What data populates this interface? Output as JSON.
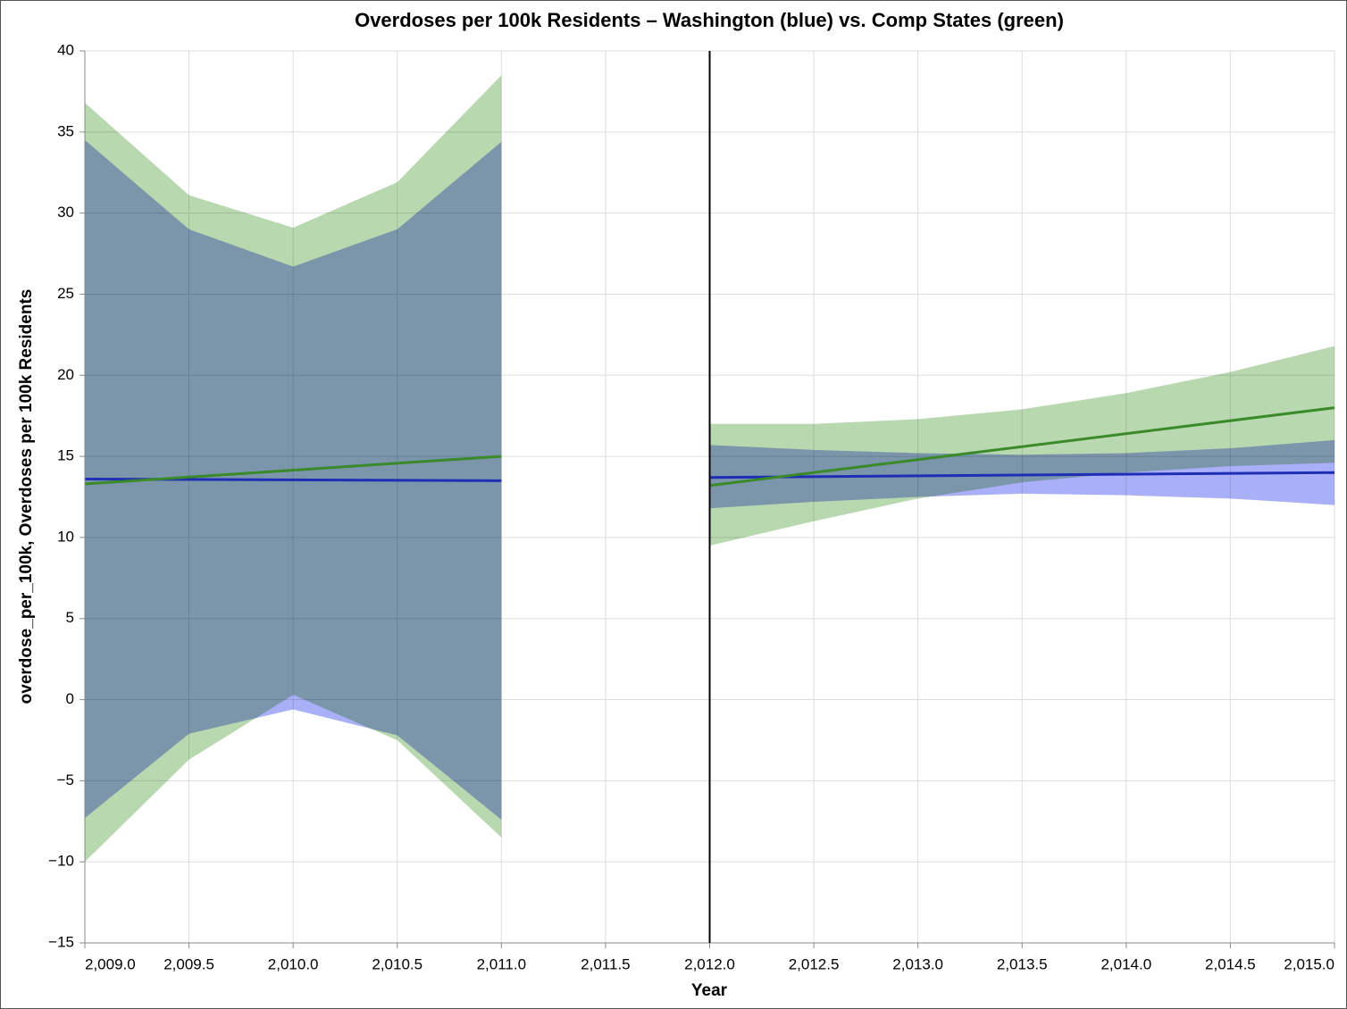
{
  "chart_data": {
    "type": "line",
    "title": "Overdoses per 100k Residents – Washington (blue) vs. Comp States (green)",
    "x_label": "Year",
    "y_label": "overdose_per_100k, Overdoses per 100k Residents",
    "xlim": [
      2009,
      2015
    ],
    "ylim": [
      -15,
      40
    ],
    "xticks": [
      {
        "value": 2009,
        "label": "2,009.0"
      },
      {
        "value": 2009.5,
        "label": "2,009.5"
      },
      {
        "value": 2010,
        "label": "2,010.0"
      },
      {
        "value": 2010.5,
        "label": "2,010.5"
      },
      {
        "value": 2011,
        "label": "2,011.0"
      },
      {
        "value": 2011.5,
        "label": "2,011.5"
      },
      {
        "value": 2012,
        "label": "2,012.0"
      },
      {
        "value": 2012.5,
        "label": "2,012.5"
      },
      {
        "value": 2013,
        "label": "2,013.0"
      },
      {
        "value": 2013.5,
        "label": "2,013.5"
      },
      {
        "value": 2014,
        "label": "2,014.0"
      },
      {
        "value": 2014.5,
        "label": "2,014.5"
      },
      {
        "value": 2015,
        "label": "2,015.0"
      }
    ],
    "yticks": [
      40,
      35,
      30,
      25,
      20,
      15,
      10,
      5,
      0,
      {
        "value": -5,
        "label": "−5"
      },
      {
        "value": -10,
        "label": "−10"
      },
      {
        "value": -15,
        "label": "−15"
      }
    ],
    "grid": true,
    "rule_x": 2012,
    "bands": [
      {
        "color": "#b8d8b0",
        "x": [
          2009,
          2009.5,
          2010,
          2010.5,
          2011
        ],
        "upper": [
          36.8,
          31.1,
          29.1,
          31.9,
          38.5
        ],
        "lower": [
          -10.0,
          -3.7,
          0.3,
          -2.5,
          -8.5
        ]
      },
      {
        "color": "#aab0f8",
        "x": [
          2009,
          2009.5,
          2010,
          2010.5,
          2011
        ],
        "upper": [
          34.5,
          29.0,
          26.7,
          29.0,
          34.4
        ],
        "lower": [
          -7.3,
          -2.1,
          -0.6,
          -2.2,
          -7.4
        ]
      },
      {
        "color": "#b8d8b0",
        "x": [
          2012,
          2012.5,
          2013,
          2013.5,
          2014,
          2014.5,
          2015
        ],
        "upper": [
          17.0,
          17.0,
          17.3,
          17.9,
          18.9,
          20.2,
          21.8
        ],
        "lower": [
          9.5,
          11.0,
          12.4,
          13.4,
          14.0,
          14.4,
          14.6
        ]
      },
      {
        "color": "#aab0f8",
        "x": [
          2012,
          2012.5,
          2013,
          2013.5,
          2014,
          2014.5,
          2015
        ],
        "upper": [
          15.7,
          15.4,
          15.2,
          15.1,
          15.2,
          15.5,
          16.0
        ],
        "lower": [
          11.8,
          12.2,
          12.5,
          12.7,
          12.6,
          12.4,
          12.0
        ]
      }
    ],
    "series": [
      {
        "color": "#1f2fb5",
        "x": [
          2009,
          2011
        ],
        "values": [
          13.6,
          13.5
        ]
      },
      {
        "color": "#3a8a2a",
        "x": [
          2009,
          2011
        ],
        "values": [
          13.3,
          15.0
        ]
      },
      {
        "color": "#1f2fb5",
        "x": [
          2012,
          2015
        ],
        "values": [
          13.7,
          14.0
        ]
      },
      {
        "color": "#3a8a2a",
        "x": [
          2012,
          2015
        ],
        "values": [
          13.2,
          18.0
        ]
      }
    ]
  }
}
